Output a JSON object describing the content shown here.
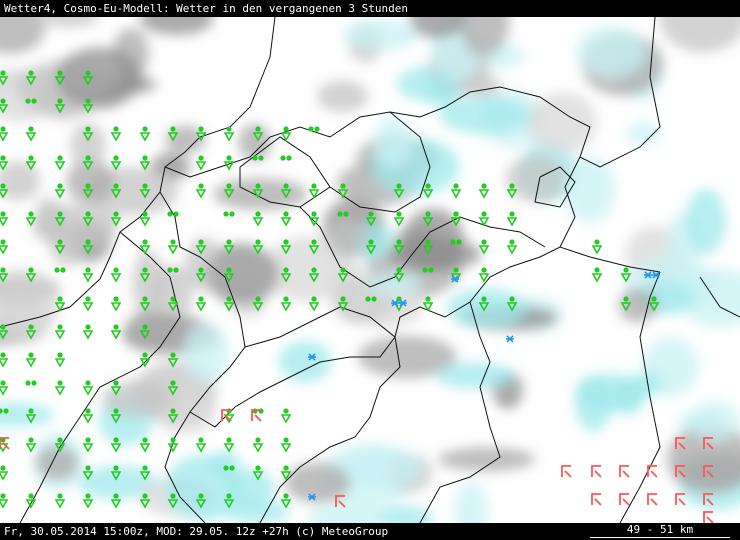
{
  "header": {
    "title": "Wetter4, Cosmo-Eu-Modell: Wetter in den vergangenen 3 Stunden"
  },
  "footer": {
    "text": "Fr, 30.05.2014 15:00z, MOD: 29.05. 12z +27h (c) MeteoGroup",
    "scale": "49 - 51 km"
  }
}
